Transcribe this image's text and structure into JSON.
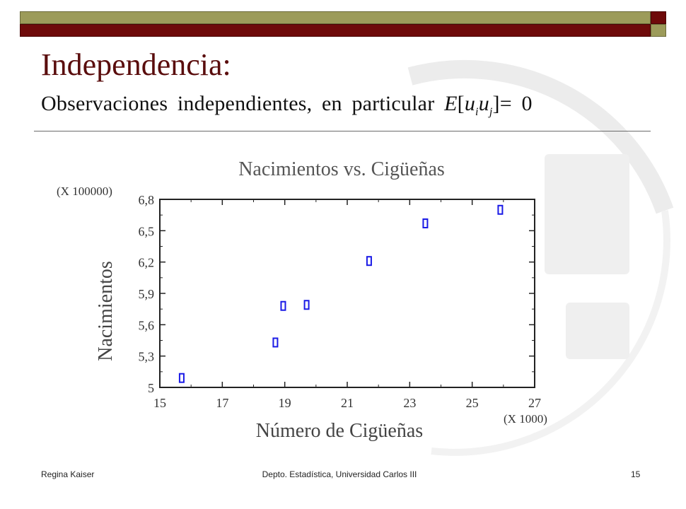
{
  "slide": {
    "title": "Independencia:",
    "subtitle_prefix": "Observaciones independientes, en particular",
    "subtitle_formula": {
      "E": "E",
      "open": "[",
      "u1": "u",
      "sub1": "i",
      "u2": "u",
      "sub2": "j",
      "close": "]= 0"
    }
  },
  "footer": {
    "author": "Regina Kaiser",
    "department": "Depto. Estadística, Universidad Carlos III",
    "page_number": "15"
  },
  "colors": {
    "title": "#5a0d0d",
    "bar_olive": "#9c9b5a",
    "bar_maroon": "#6e0a0a",
    "marker": "#1a1ae6"
  },
  "chart_data": {
    "type": "scatter",
    "title": "Nacimientos vs. Cigüeñas",
    "xlabel": "Número de Cigüeñas",
    "ylabel": "Nacimientos",
    "x_multiplier": "(X 1000)",
    "y_multiplier": "(X 100000)",
    "xlim": [
      15,
      27
    ],
    "ylim": [
      5,
      6.8
    ],
    "x_ticks": [
      15,
      17,
      19,
      21,
      23,
      25,
      27
    ],
    "x_tick_labels": [
      "15",
      "17",
      "19",
      "21",
      "23",
      "25",
      "27"
    ],
    "y_ticks": [
      5,
      5.3,
      5.6,
      5.9,
      6.2,
      6.5,
      6.8
    ],
    "y_tick_labels": [
      "5",
      "5,3",
      "5,6",
      "5,9",
      "6,2",
      "6,5",
      "6,8"
    ],
    "grid": false,
    "points": [
      {
        "x": 15.7,
        "y": 5.09
      },
      {
        "x": 18.7,
        "y": 5.43
      },
      {
        "x": 18.95,
        "y": 5.78
      },
      {
        "x": 19.7,
        "y": 5.79
      },
      {
        "x": 21.7,
        "y": 6.21
      },
      {
        "x": 23.5,
        "y": 6.57
      },
      {
        "x": 25.9,
        "y": 6.7
      }
    ]
  }
}
